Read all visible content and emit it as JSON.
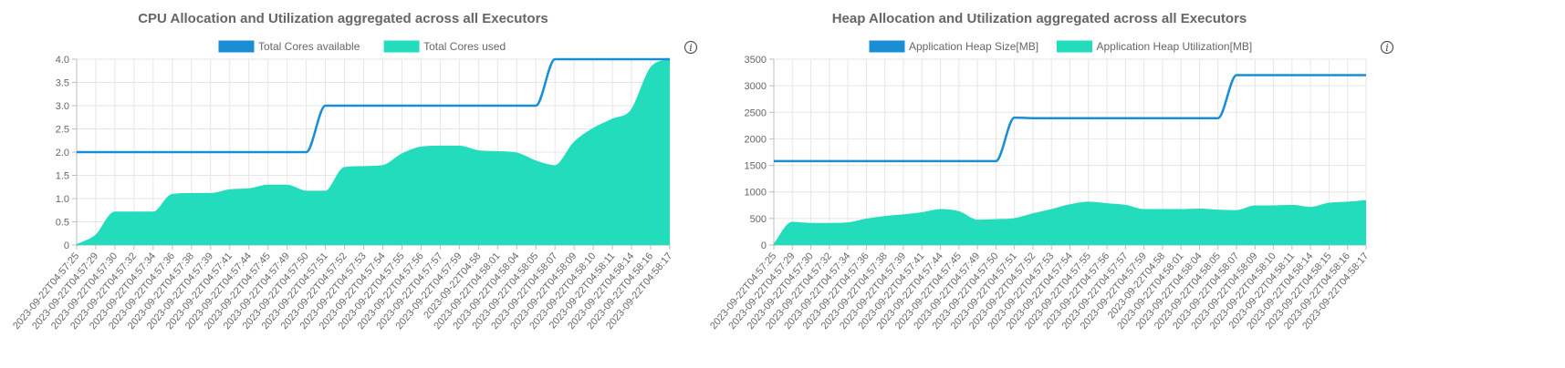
{
  "chart_data": [
    {
      "type": "area",
      "title": "CPU Allocation and Utilization aggregated across all Executors",
      "ylim": [
        0,
        4.0
      ],
      "y_ticks": [
        "0",
        "0.5",
        "1.0",
        "1.5",
        "2.0",
        "2.5",
        "3.0",
        "3.5",
        "4.0"
      ],
      "y_tick_values": [
        0,
        0.5,
        1.0,
        1.5,
        2.0,
        2.5,
        3.0,
        3.5,
        4.0
      ],
      "x": [
        "2023-09-22T04:57:25",
        "2023-09-22T04:57:29",
        "2023-09-22T04:57:30",
        "2023-09-22T04:57:32",
        "2023-09-22T04:57:34",
        "2023-09-22T04:57:36",
        "2023-09-22T04:57:38",
        "2023-09-22T04:57:39",
        "2023-09-22T04:57:41",
        "2023-09-22T04:57:44",
        "2023-09-22T04:57:45",
        "2023-09-22T04:57:49",
        "2023-09-22T04:57:50",
        "2023-09-22T04:57:51",
        "2023-09-22T04:57:52",
        "2023-09-22T04:57:53",
        "2023-09-22T04:57:54",
        "2023-09-22T04:57:55",
        "2023-09-22T04:57:56",
        "2023-09-22T04:57:57",
        "2023-09-22T04:57:59",
        "2023-09-22T04:58",
        "2023-09-22T04:58:01",
        "2023-09-22T04:58:04",
        "2023-09-22T04:58:05",
        "2023-09-22T04:58:07",
        "2023-09-22T04:58:09",
        "2023-09-22T04:58:10",
        "2023-09-22T04:58:11",
        "2023-09-22T04:58:14",
        "2023-09-22T04:58:16",
        "2023-09-22T04:58:17"
      ],
      "series": [
        {
          "name": "Total Cores available",
          "color": "#1a8ed4",
          "fill": false,
          "values": [
            2,
            2,
            2,
            2,
            2,
            2,
            2,
            2,
            2,
            2,
            2,
            2,
            2,
            3,
            3,
            3,
            3,
            3,
            3,
            3,
            3,
            3,
            3,
            3,
            3,
            4,
            4,
            4,
            4,
            4,
            4,
            4
          ]
        },
        {
          "name": "Total Cores used",
          "color": "#22dcbc",
          "fill": true,
          "values": [
            0,
            0.2,
            0.7,
            0.7,
            0.7,
            1.08,
            1.1,
            1.1,
            1.18,
            1.2,
            1.28,
            1.28,
            1.15,
            1.15,
            1.66,
            1.68,
            1.7,
            1.95,
            2.1,
            2.12,
            2.12,
            2.02,
            2.0,
            1.97,
            1.8,
            1.7,
            2.2,
            2.5,
            2.7,
            2.9,
            3.8,
            4.0
          ]
        }
      ],
      "legend": "top"
    },
    {
      "type": "area",
      "title": "Heap Allocation and Utilization aggregated across all Executors",
      "ylim": [
        0,
        3500
      ],
      "y_ticks": [
        "0",
        "500",
        "1000",
        "1500",
        "2000",
        "2500",
        "3000",
        "3500"
      ],
      "y_tick_values": [
        0,
        500,
        1000,
        1500,
        2000,
        2500,
        3000,
        3500
      ],
      "x": [
        "2023-09-22T04:57:25",
        "2023-09-22T04:57:29",
        "2023-09-22T04:57:30",
        "2023-09-22T04:57:32",
        "2023-09-22T04:57:34",
        "2023-09-22T04:57:36",
        "2023-09-22T04:57:38",
        "2023-09-22T04:57:39",
        "2023-09-22T04:57:41",
        "2023-09-22T04:57:44",
        "2023-09-22T04:57:45",
        "2023-09-22T04:57:49",
        "2023-09-22T04:57:50",
        "2023-09-22T04:57:51",
        "2023-09-22T04:57:52",
        "2023-09-22T04:57:53",
        "2023-09-22T04:57:54",
        "2023-09-22T04:57:55",
        "2023-09-22T04:57:56",
        "2023-09-22T04:57:57",
        "2023-09-22T04:57:59",
        "2023-09-22T04:58",
        "2023-09-22T04:58:01",
        "2023-09-22T04:58:04",
        "2023-09-22T04:58:05",
        "2023-09-22T04:58:07",
        "2023-09-22T04:58:09",
        "2023-09-22T04:58:10",
        "2023-09-22T04:58:11",
        "2023-09-22T04:58:14",
        "2023-09-22T04:58:15",
        "2023-09-22T04:58:16",
        "2023-09-22T04:58:17"
      ],
      "series": [
        {
          "name": "Application Heap Size[MB]",
          "color": "#1a8ed4",
          "fill": false,
          "values": [
            1580,
            1580,
            1580,
            1580,
            1580,
            1580,
            1580,
            1580,
            1580,
            1580,
            1580,
            1580,
            1580,
            2400,
            2390,
            2390,
            2390,
            2390,
            2390,
            2390,
            2390,
            2390,
            2390,
            2390,
            2390,
            3200,
            3200,
            3200,
            3200,
            3200,
            3200,
            3200,
            3200
          ]
        },
        {
          "name": "Application Heap Utilization[MB]",
          "color": "#22dcbc",
          "fill": true,
          "values": [
            0,
            420,
            400,
            400,
            410,
            480,
            530,
            560,
            600,
            660,
            620,
            460,
            470,
            490,
            580,
            660,
            750,
            800,
            770,
            740,
            660,
            660,
            660,
            670,
            650,
            640,
            730,
            730,
            740,
            700,
            780,
            800,
            830
          ]
        }
      ],
      "legend": "top"
    }
  ]
}
